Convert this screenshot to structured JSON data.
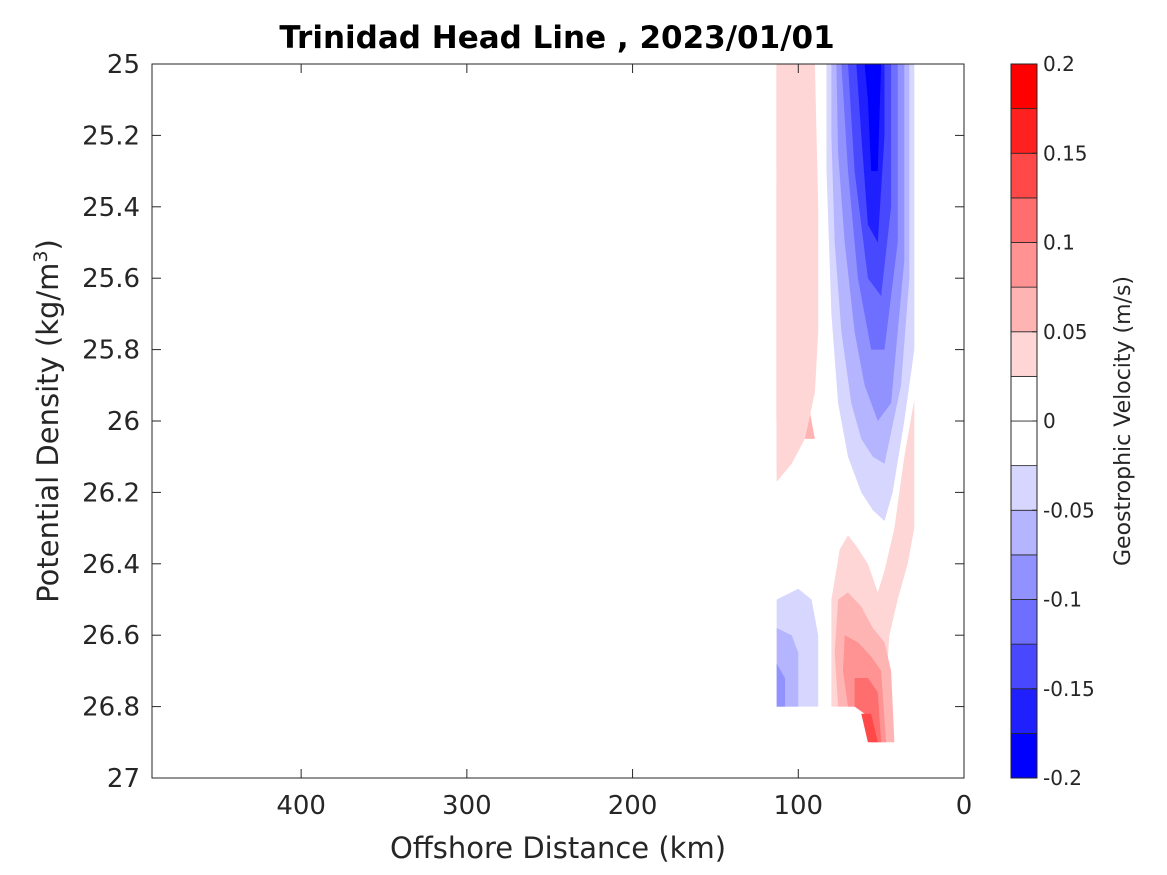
{
  "chart_data": {
    "type": "contour",
    "title": "Trinidad Head Line , 2023/01/01",
    "xlabel": "Offshore Distance (km)",
    "ylabel": "Potential Density (kg/m",
    "ylabel_sup": "3",
    "ylabel_close": ")",
    "xlim": [
      490,
      0
    ],
    "ylim": [
      25,
      27
    ],
    "x_reversed": true,
    "y_reversed": true,
    "xticks": [
      400,
      300,
      200,
      100,
      0
    ],
    "xtick_labels": [
      "400",
      "300",
      "200",
      "100",
      "0"
    ],
    "yticks": [
      25,
      25.2,
      25.4,
      25.6,
      25.8,
      26,
      26.2,
      26.4,
      26.6,
      26.8,
      27
    ],
    "ytick_labels": [
      "25",
      "25.2",
      "25.4",
      "25.6",
      "25.8",
      "26",
      "26.2",
      "26.4",
      "26.6",
      "26.8",
      "27"
    ],
    "colorbar": {
      "label": "Geostrophic Velocity (m/s)",
      "limits": [
        -0.2,
        0.2
      ],
      "levels": [
        -0.2,
        -0.175,
        -0.15,
        -0.125,
        -0.1,
        -0.075,
        -0.05,
        -0.025,
        0,
        0.025,
        0.05,
        0.075,
        0.1,
        0.125,
        0.15,
        0.175,
        0.2
      ],
      "band_colors": [
        "#0000ff",
        "#2020ff",
        "#4848ff",
        "#6e6eff",
        "#9292ff",
        "#b4b4ff",
        "#d6d6ff",
        "#ffffff",
        "#ffffff",
        "#ffd6d6",
        "#ffb4b4",
        "#ff9292",
        "#ff6e6e",
        "#ff4848",
        "#ff2020",
        "#ff0000"
      ],
      "ticks": [
        0.2,
        0.15,
        0.1,
        0.05,
        0,
        -0.05,
        -0.1,
        -0.15,
        -0.2
      ],
      "tick_labels": [
        "0.2",
        "0.15",
        "0.1",
        "0.05",
        "0",
        "-0.05",
        "-0.1",
        "-0.15",
        "-0.2"
      ]
    },
    "regions": [
      {
        "name": "nearshore-positive-core-upper",
        "level": 0.075,
        "points": [
          [
            113,
            25
          ],
          [
            96,
            25
          ],
          [
            96,
            25.4
          ],
          [
            100,
            25.7
          ],
          [
            106,
            25.9
          ],
          [
            113,
            26.0
          ]
        ]
      },
      {
        "name": "nearshore-positive-band-0.05",
        "level": 0.05,
        "points": [
          [
            113,
            25
          ],
          [
            106,
            25
          ],
          [
            104,
            25.3
          ],
          [
            102,
            25.6
          ],
          [
            98,
            25.8
          ],
          [
            94,
            25.95
          ],
          [
            90,
            26.05
          ],
          [
            96,
            26.05
          ],
          [
            100,
            25.95
          ],
          [
            104,
            25.8
          ],
          [
            108,
            25.6
          ],
          [
            110,
            25.3
          ],
          [
            113,
            26.17
          ]
        ]
      },
      {
        "name": "nearshore-positive-band-0.025",
        "level": 0.025,
        "points": [
          [
            113,
            25
          ],
          [
            90,
            25
          ],
          [
            88,
            25.4
          ],
          [
            88,
            25.75
          ],
          [
            90,
            25.92
          ],
          [
            96,
            26.05
          ],
          [
            104,
            26.12
          ],
          [
            113,
            26.17
          ]
        ]
      },
      {
        "name": "offshore-negative-band-0.025",
        "level": -0.025,
        "points": [
          [
            83,
            25
          ],
          [
            30,
            25
          ],
          [
            30,
            25.8
          ],
          [
            36,
            26.0
          ],
          [
            43,
            26.2
          ],
          [
            48,
            26.28
          ],
          [
            55,
            26.25
          ],
          [
            62,
            26.2
          ],
          [
            70,
            26.1
          ],
          [
            76,
            25.95
          ],
          [
            80,
            25.7
          ],
          [
            83,
            25.3
          ]
        ]
      },
      {
        "name": "offshore-negative-band-0.05",
        "level": -0.05,
        "points": [
          [
            80,
            25
          ],
          [
            33,
            25
          ],
          [
            33,
            25.6
          ],
          [
            38,
            25.9
          ],
          [
            48,
            26.12
          ],
          [
            55,
            26.1
          ],
          [
            62,
            26.05
          ],
          [
            68,
            25.95
          ],
          [
            74,
            25.75
          ],
          [
            78,
            25.5
          ],
          [
            80,
            25.2
          ]
        ]
      },
      {
        "name": "offshore-negative-band-0.075",
        "level": -0.075,
        "points": [
          [
            77,
            25
          ],
          [
            36,
            25
          ],
          [
            36,
            25.55
          ],
          [
            44,
            25.95
          ],
          [
            52,
            26.0
          ],
          [
            60,
            25.9
          ],
          [
            66,
            25.75
          ],
          [
            72,
            25.5
          ],
          [
            76,
            25.25
          ]
        ]
      },
      {
        "name": "offshore-negative-band-0.1",
        "level": -0.1,
        "points": [
          [
            74,
            25
          ],
          [
            40,
            25
          ],
          [
            40,
            25.5
          ],
          [
            48,
            25.8
          ],
          [
            56,
            25.8
          ],
          [
            64,
            25.6
          ],
          [
            70,
            25.3
          ]
        ]
      },
      {
        "name": "offshore-negative-band-0.125",
        "level": -0.125,
        "points": [
          [
            70,
            25
          ],
          [
            44,
            25
          ],
          [
            44,
            25.4
          ],
          [
            50,
            25.65
          ],
          [
            58,
            25.6
          ],
          [
            66,
            25.3
          ]
        ]
      },
      {
        "name": "offshore-negative-band-0.15",
        "level": -0.15,
        "points": [
          [
            65,
            25
          ],
          [
            48,
            25
          ],
          [
            48,
            25.2
          ],
          [
            52,
            25.5
          ],
          [
            58,
            25.45
          ],
          [
            62,
            25.2
          ]
        ]
      },
      {
        "name": "offshore-negative-core-0.175",
        "level": -0.175,
        "points": [
          [
            60,
            25
          ],
          [
            50,
            25
          ],
          [
            52,
            25.3
          ],
          [
            56,
            25.3
          ],
          [
            58,
            25.1
          ]
        ]
      },
      {
        "name": "deep-nearshore-positive-0.025-a",
        "level": 0.025,
        "points": [
          [
            30,
            25.94
          ],
          [
            36,
            26.1
          ],
          [
            42,
            26.3
          ],
          [
            48,
            26.42
          ],
          [
            52,
            26.48
          ],
          [
            58,
            26.4
          ],
          [
            65,
            26.35
          ],
          [
            70,
            26.32
          ],
          [
            75,
            26.36
          ],
          [
            80,
            26.5
          ],
          [
            80,
            26.8
          ],
          [
            48,
            26.8
          ],
          [
            45,
            26.6
          ],
          [
            40,
            26.5
          ],
          [
            34,
            26.4
          ],
          [
            30,
            26.3
          ]
        ]
      },
      {
        "name": "deep-nearshore-positive-0.05",
        "level": 0.05,
        "points": [
          [
            76,
            26.5
          ],
          [
            70,
            26.48
          ],
          [
            62,
            26.52
          ],
          [
            55,
            26.58
          ],
          [
            48,
            26.62
          ],
          [
            44,
            26.7
          ],
          [
            42,
            26.9
          ],
          [
            50,
            26.9
          ],
          [
            55,
            26.8
          ],
          [
            76,
            26.8
          ],
          [
            78,
            26.65
          ]
        ]
      },
      {
        "name": "deep-nearshore-positive-0.075",
        "level": 0.075,
        "points": [
          [
            72,
            26.6
          ],
          [
            64,
            26.62
          ],
          [
            56,
            26.66
          ],
          [
            50,
            26.7
          ],
          [
            47,
            26.9
          ],
          [
            52,
            26.9
          ],
          [
            56,
            26.8
          ],
          [
            70,
            26.8
          ],
          [
            73,
            26.7
          ]
        ]
      },
      {
        "name": "deep-nearshore-positive-0.1",
        "level": 0.1,
        "points": [
          [
            66,
            26.72
          ],
          [
            58,
            26.72
          ],
          [
            52,
            26.76
          ],
          [
            50,
            26.9
          ],
          [
            56,
            26.9
          ],
          [
            60,
            26.82
          ],
          [
            66,
            26.8
          ]
        ]
      },
      {
        "name": "deep-nearshore-positive-0.125",
        "level": 0.125,
        "points": [
          [
            62,
            26.82
          ],
          [
            56,
            26.82
          ],
          [
            52,
            26.9
          ],
          [
            58,
            26.9
          ]
        ]
      },
      {
        "name": "deep-offshore-negative-0.025",
        "level": -0.025,
        "points": [
          [
            113,
            26.5
          ],
          [
            100,
            26.47
          ],
          [
            92,
            26.5
          ],
          [
            88,
            26.6
          ],
          [
            88,
            26.8
          ],
          [
            113,
            26.8
          ]
        ]
      },
      {
        "name": "deep-offshore-negative-0.05",
        "level": -0.05,
        "points": [
          [
            113,
            26.58
          ],
          [
            104,
            26.6
          ],
          [
            100,
            26.65
          ],
          [
            100,
            26.8
          ],
          [
            113,
            26.8
          ]
        ]
      },
      {
        "name": "deep-offshore-negative-0.075",
        "level": -0.075,
        "points": [
          [
            113,
            26.68
          ],
          [
            108,
            26.72
          ],
          [
            108,
            26.8
          ],
          [
            113,
            26.8
          ]
        ]
      }
    ]
  }
}
